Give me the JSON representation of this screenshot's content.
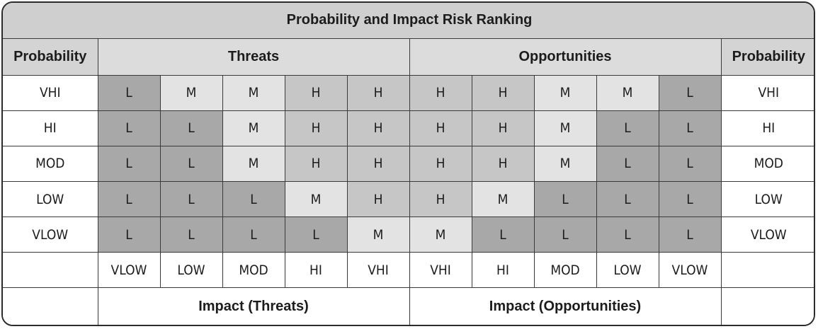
{
  "title": "Probability and Impact Risk Ranking",
  "headers": {
    "probability_left": "Probability",
    "threats": "Threats",
    "opportunities": "Opportunities",
    "probability_right": "Probability"
  },
  "rows": [
    {
      "label": "VHI",
      "threats": [
        "L",
        "M",
        "M",
        "H",
        "H"
      ],
      "opportunities": [
        "H",
        "H",
        "M",
        "M",
        "L"
      ]
    },
    {
      "label": "HI",
      "threats": [
        "L",
        "L",
        "M",
        "H",
        "H"
      ],
      "opportunities": [
        "H",
        "H",
        "M",
        "L",
        "L"
      ]
    },
    {
      "label": "MOD",
      "threats": [
        "L",
        "L",
        "M",
        "H",
        "H"
      ],
      "opportunities": [
        "H",
        "H",
        "M",
        "L",
        "L"
      ]
    },
    {
      "label": "LOW",
      "threats": [
        "L",
        "L",
        "L",
        "M",
        "H"
      ],
      "opportunities": [
        "H",
        "M",
        "L",
        "L",
        "L"
      ]
    },
    {
      "label": "VLOW",
      "threats": [
        "L",
        "L",
        "L",
        "L",
        "M"
      ],
      "opportunities": [
        "M",
        "L",
        "L",
        "L",
        "L"
      ]
    }
  ],
  "impact_threats": [
    "VLOW",
    "LOW",
    "MOD",
    "HI",
    "VHI"
  ],
  "impact_opportunities": [
    "VHI",
    "HI",
    "MOD",
    "LOW",
    "VLOW"
  ],
  "footer": {
    "impact_threats_label": "Impact (Threats)",
    "impact_opportunities_label": "Impact (Opportunities)"
  },
  "colors": {
    "L": "#a8a8a8",
    "M": "#e3e3e3",
    "H": "#c6c6c6",
    "header": "#d4d4d4"
  }
}
